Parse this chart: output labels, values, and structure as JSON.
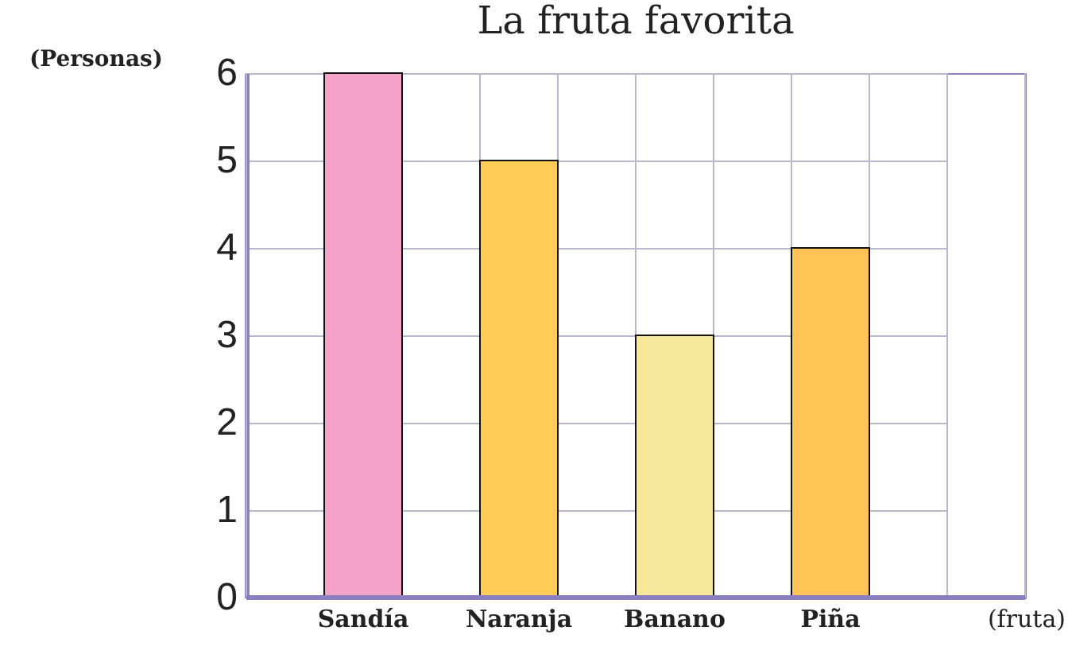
{
  "chart_data": {
    "type": "bar",
    "title": "La fruta favorita",
    "xlabel": "(fruta)",
    "ylabel": "(Personas)",
    "categories": [
      "Sandía",
      "Naranja",
      "Banano",
      "Piña"
    ],
    "values": [
      6,
      5,
      3,
      4
    ],
    "colors": [
      "#f4a3c8",
      "#ffcd55",
      "#f8e99a",
      "#ffc455"
    ],
    "ylim": [
      0,
      6
    ],
    "yticks": [
      0,
      1,
      2,
      3,
      4,
      5,
      6
    ],
    "grid": true,
    "legend": false
  }
}
